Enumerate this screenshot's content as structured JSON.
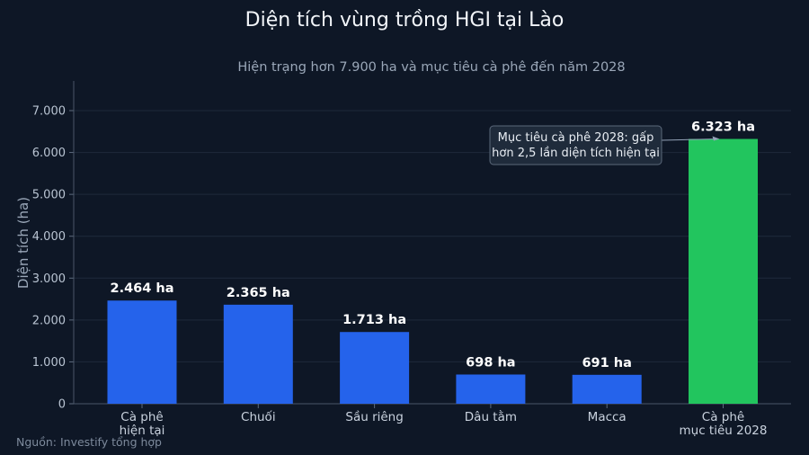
{
  "chart_data": {
    "type": "bar",
    "title": "Diện tích vùng trồng HGI tại Lào",
    "subtitle": "Hiện trạng hơn 7.900 ha và mục tiêu cà phê đến năm 2028",
    "ylabel": "Diện tích (ha)",
    "xlabel": "",
    "ylim": [
      0,
      7000
    ],
    "yticks": [
      0,
      1000,
      2000,
      3000,
      4000,
      5000,
      6000,
      7000
    ],
    "ytick_labels": [
      "0",
      "1.000",
      "2.000",
      "3.000",
      "4.000",
      "5.000",
      "6.000",
      "7.000"
    ],
    "grid": true,
    "categories": [
      [
        "Cà phê",
        "hiện tại"
      ],
      [
        "Chuối"
      ],
      [
        "Sầu riêng"
      ],
      [
        "Dâu tằm"
      ],
      [
        "Macca"
      ],
      [
        "Cà phê",
        "mục tiêu 2028"
      ]
    ],
    "values": [
      2464,
      2365,
      1713,
      698,
      691,
      6323
    ],
    "value_labels": [
      "2.464 ha",
      "2.365 ha",
      "1.713 ha",
      "698 ha",
      "691 ha",
      "6.323 ha"
    ],
    "bar_colors": [
      "#2563eb",
      "#2563eb",
      "#2563eb",
      "#2563eb",
      "#2563eb",
      "#22c55e"
    ],
    "annotation": {
      "lines": [
        "Mục tiêu cà phê 2028: gấp",
        "hơn 2,5 lần diện tích hiện tại"
      ],
      "target_index": 5
    }
  },
  "source": "Nguồn: Investify tổng hợp",
  "colors": {
    "background": "#0e1726",
    "bar": "#2563eb",
    "highlight_bar": "#22c55e",
    "grid": "#1e2a3b"
  }
}
